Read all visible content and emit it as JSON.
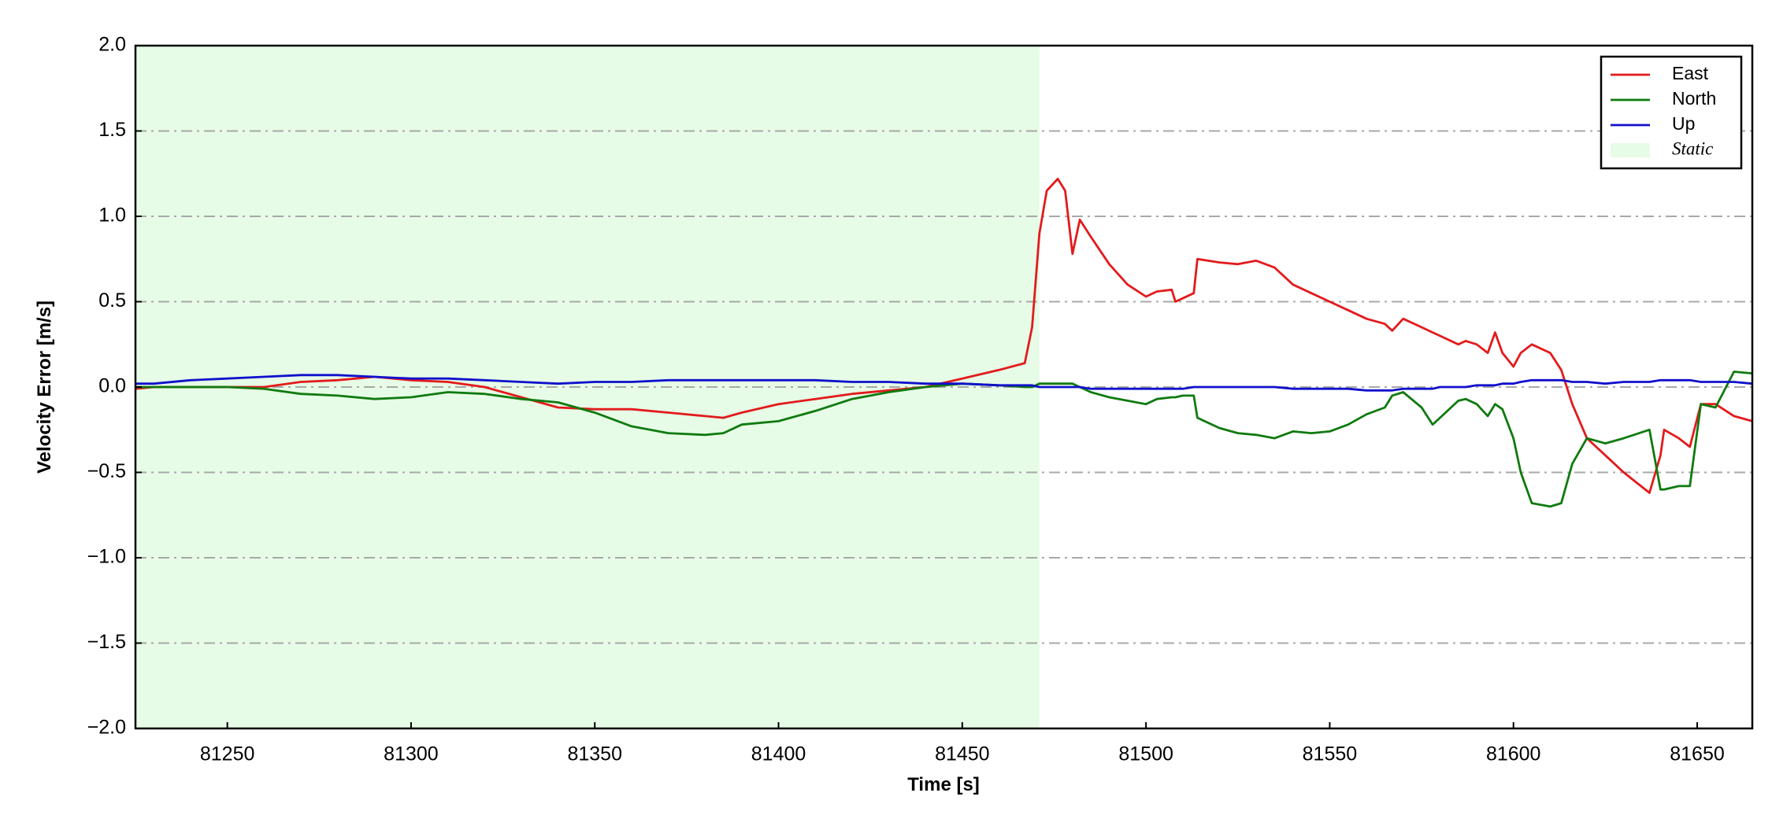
{
  "chart_data": {
    "type": "line",
    "x_label": "Time [s]",
    "y_label": "Velocity Error [m/s]",
    "xlim": [
      81225,
      81665
    ],
    "ylim": [
      -2.0,
      2.0
    ],
    "xticks": [
      81250,
      81300,
      81350,
      81400,
      81450,
      81500,
      81550,
      81600,
      81650
    ],
    "yticks": [
      {
        "value": -2.0,
        "label": "−2.0"
      },
      {
        "value": -1.5,
        "label": "−1.5"
      },
      {
        "value": -1.0,
        "label": "−1.0"
      },
      {
        "value": -0.5,
        "label": "−0.5"
      },
      {
        "value": 0.0,
        "label": "0.0"
      },
      {
        "value": 0.5,
        "label": "0.5"
      },
      {
        "value": 1.0,
        "label": "1.0"
      },
      {
        "value": 1.5,
        "label": "1.5"
      },
      {
        "value": 2.0,
        "label": "2.0"
      }
    ],
    "grid": true,
    "legend_position": "upper-right",
    "shaded_region": {
      "name": "Static",
      "x_range": [
        81225,
        81471
      ],
      "color": "#e6fce6"
    },
    "x": [
      81225,
      81230,
      81240,
      81250,
      81260,
      81270,
      81280,
      81290,
      81300,
      81310,
      81320,
      81330,
      81340,
      81350,
      81360,
      81370,
      81380,
      81385,
      81390,
      81400,
      81410,
      81420,
      81430,
      81440,
      81450,
      81460,
      81467,
      81469,
      81471,
      81473,
      81476,
      81478,
      81480,
      81482,
      81485,
      81490,
      81495,
      81500,
      81503,
      81507,
      81508,
      81510,
      81513,
      81514,
      81520,
      81525,
      81530,
      81535,
      81540,
      81545,
      81550,
      81555,
      81560,
      81565,
      81567,
      81570,
      81575,
      81578,
      81580,
      81585,
      81587,
      81590,
      81593,
      81595,
      81597,
      81600,
      81602,
      81605,
      81610,
      81613,
      81616,
      81620,
      81625,
      81630,
      81637,
      81640,
      81641,
      81645,
      81648,
      81651,
      81655,
      81660,
      81665
    ],
    "series": [
      {
        "name": "East",
        "color": "#e31a1c",
        "values": [
          -0.01,
          0.0,
          0.0,
          0.0,
          0.0,
          0.03,
          0.04,
          0.06,
          0.04,
          0.03,
          0.0,
          -0.06,
          -0.12,
          -0.13,
          -0.13,
          -0.15,
          -0.17,
          -0.18,
          -0.15,
          -0.1,
          -0.07,
          -0.04,
          -0.02,
          0.0,
          0.05,
          0.1,
          0.14,
          0.35,
          0.9,
          1.15,
          1.22,
          1.15,
          0.78,
          0.98,
          0.88,
          0.72,
          0.6,
          0.53,
          0.56,
          0.57,
          0.5,
          0.52,
          0.55,
          0.75,
          0.73,
          0.72,
          0.74,
          0.7,
          0.6,
          0.55,
          0.5,
          0.45,
          0.4,
          0.37,
          0.33,
          0.4,
          0.35,
          0.32,
          0.3,
          0.25,
          0.27,
          0.25,
          0.2,
          0.32,
          0.2,
          0.12,
          0.2,
          0.25,
          0.2,
          0.1,
          -0.1,
          -0.3,
          -0.4,
          -0.5,
          -0.62,
          -0.4,
          -0.25,
          -0.3,
          -0.35,
          -0.1,
          -0.1,
          -0.17,
          -0.2
        ]
      },
      {
        "name": "North",
        "color": "#0f7a0f",
        "values": [
          0.0,
          0.0,
          0.0,
          0.0,
          -0.01,
          -0.04,
          -0.05,
          -0.07,
          -0.06,
          -0.03,
          -0.04,
          -0.07,
          -0.09,
          -0.15,
          -0.23,
          -0.27,
          -0.28,
          -0.27,
          -0.22,
          -0.2,
          -0.14,
          -0.07,
          -0.03,
          0.0,
          0.02,
          0.01,
          0.0,
          0.0,
          0.02,
          0.02,
          0.02,
          0.02,
          0.02,
          0.0,
          -0.03,
          -0.06,
          -0.08,
          -0.1,
          -0.07,
          -0.06,
          -0.06,
          -0.05,
          -0.05,
          -0.18,
          -0.24,
          -0.27,
          -0.28,
          -0.3,
          -0.26,
          -0.27,
          -0.26,
          -0.22,
          -0.16,
          -0.12,
          -0.05,
          -0.03,
          -0.12,
          -0.22,
          -0.18,
          -0.08,
          -0.07,
          -0.1,
          -0.17,
          -0.1,
          -0.13,
          -0.3,
          -0.5,
          -0.68,
          -0.7,
          -0.68,
          -0.45,
          -0.3,
          -0.33,
          -0.3,
          -0.25,
          -0.6,
          -0.6,
          -0.58,
          -0.58,
          -0.1,
          -0.12,
          0.09,
          0.08
        ]
      },
      {
        "name": "Up",
        "color": "#1010cc",
        "values": [
          0.02,
          0.02,
          0.04,
          0.05,
          0.06,
          0.07,
          0.07,
          0.06,
          0.05,
          0.05,
          0.04,
          0.03,
          0.02,
          0.03,
          0.03,
          0.04,
          0.04,
          0.04,
          0.04,
          0.04,
          0.04,
          0.03,
          0.03,
          0.02,
          0.02,
          0.01,
          0.01,
          0.01,
          0.0,
          0.0,
          0.0,
          0.0,
          0.0,
          0.0,
          -0.01,
          -0.01,
          -0.01,
          -0.01,
          -0.01,
          -0.01,
          -0.01,
          -0.01,
          0.0,
          0.0,
          0.0,
          0.0,
          0.0,
          0.0,
          -0.01,
          -0.01,
          -0.01,
          -0.01,
          -0.02,
          -0.02,
          -0.02,
          -0.01,
          -0.01,
          -0.01,
          0.0,
          0.0,
          0.0,
          0.01,
          0.01,
          0.01,
          0.02,
          0.02,
          0.03,
          0.04,
          0.04,
          0.04,
          0.03,
          0.03,
          0.02,
          0.03,
          0.03,
          0.04,
          0.04,
          0.04,
          0.04,
          0.03,
          0.03,
          0.03,
          0.02
        ]
      }
    ]
  }
}
